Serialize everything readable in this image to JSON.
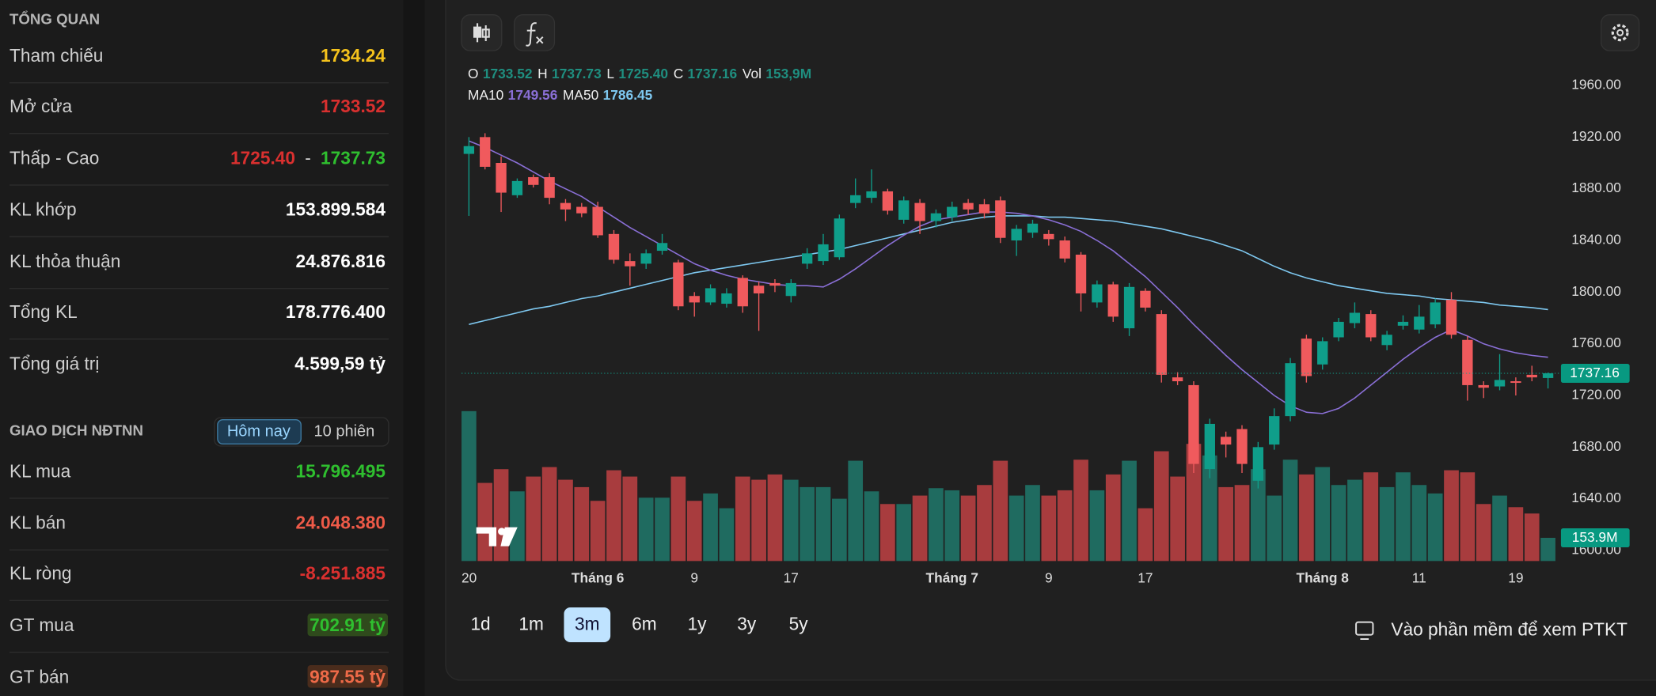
{
  "overview": {
    "title": "TỔNG QUAN",
    "rows": [
      {
        "label": "Tham chiếu",
        "value": "1734.24",
        "color": "#f4c21c"
      },
      {
        "label": "Mở cửa",
        "value": "1733.52",
        "color": "#d9302f"
      },
      {
        "label": "Thấp - Cao",
        "low": "1725.40",
        "separator": "-",
        "high": "1737.73",
        "low_color": "#d9302f",
        "high_color": "#2fbf2f"
      },
      {
        "label": "KL khớp",
        "value": "153.899.584",
        "color": "#ffffff"
      },
      {
        "label": "KL thỏa thuận",
        "value": "24.876.816",
        "color": "#ffffff"
      },
      {
        "label": "Tổng KL",
        "value": "178.776.400",
        "color": "#ffffff"
      },
      {
        "label": "Tổng giá trị",
        "value": "4.599,59 tỷ",
        "color": "#ffffff"
      }
    ]
  },
  "foreign": {
    "title": "GIAO DỊCH NĐTNN",
    "tabs": [
      "Hôm nay",
      "10 phiên"
    ],
    "active_tab": 0,
    "rows": [
      {
        "label": "KL mua",
        "value": "15.796.495",
        "color": "#2fbf2f"
      },
      {
        "label": "KL bán",
        "value": "24.048.380",
        "color": "#ee5a48"
      },
      {
        "label": "KL ròng",
        "value": "-8.251.885",
        "color": "#d9302f"
      },
      {
        "label": "GT mua",
        "value": "702.91 tỷ",
        "color": "#2fbf2f",
        "highlight": "#2f4a1c"
      },
      {
        "label": "GT bán",
        "value": "987.55 tỷ",
        "color": "#ee6a48",
        "highlight": "#4a2c1c"
      }
    ]
  },
  "chart": {
    "type": "candlestick",
    "up_color": "#0f9e8a",
    "down_color": "#f05a5d",
    "vol_up_color": "#1f6b60",
    "vol_down_color": "#a83c3e",
    "legend": [
      {
        "key": "O",
        "value": "1733.52"
      },
      {
        "key": "H",
        "value": "1737.73"
      },
      {
        "key": "L",
        "value": "1725.40"
      },
      {
        "key": "C",
        "value": "1737.16"
      },
      {
        "key": "Vol",
        "value": "153,9M"
      }
    ],
    "ma_legend": [
      {
        "key": "MA10",
        "value": "1749.56",
        "color": "#8a6fd6"
      },
      {
        "key": "MA50",
        "value": "1786.45",
        "color": "#7ec8f0"
      }
    ],
    "categories": [
      "20",
      null,
      null,
      null,
      null,
      null,
      null,
      null,
      "Tháng 6",
      null,
      null,
      null,
      null,
      null,
      "9",
      null,
      null,
      null,
      null,
      null,
      "17",
      null,
      null,
      null,
      null,
      null,
      null,
      null,
      null,
      null,
      "Tháng 7",
      null,
      null,
      null,
      null,
      null,
      "9",
      null,
      null,
      null,
      null,
      null,
      "17",
      null,
      null,
      null,
      null,
      null,
      null,
      null,
      null,
      null,
      null,
      "Tháng 8",
      null,
      null,
      null,
      null,
      null,
      "11",
      null,
      null,
      null,
      null,
      null,
      "19",
      null,
      null
    ],
    "open": [
      1907,
      1920,
      1900,
      1875,
      1889,
      1889,
      1869,
      1866,
      1866,
      1845,
      1824,
      1822,
      1832,
      1823,
      1797,
      1792,
      1791,
      1811,
      1805,
      1807,
      1797,
      1822,
      1824,
      1827,
      1869,
      1873,
      1878,
      1856,
      1869,
      1855,
      1858,
      1869,
      1868,
      1871,
      1840,
      1846,
      1845,
      1840,
      1829,
      1792,
      1806,
      1772,
      1801,
      1783,
      1734,
      1728,
      1663,
      1688,
      1694,
      1654,
      1682,
      1704,
      1764,
      1744,
      1765,
      1776,
      1783,
      1759,
      1774,
      1771,
      1775,
      1794,
      1763,
      1728,
      1727,
      1731,
      1736,
      1733.52
    ],
    "high": [
      1920,
      1923,
      1905,
      1888,
      1891,
      1892,
      1872,
      1869,
      1870,
      1848,
      1830,
      1833,
      1845,
      1825,
      1800,
      1806,
      1803,
      1813,
      1808,
      1810,
      1810,
      1834,
      1845,
      1860,
      1888,
      1895,
      1880,
      1874,
      1872,
      1864,
      1870,
      1872,
      1872,
      1874,
      1852,
      1856,
      1848,
      1843,
      1831,
      1809,
      1808,
      1807,
      1803,
      1786,
      1738,
      1731,
      1702,
      1692,
      1697,
      1684,
      1710,
      1749,
      1767,
      1765,
      1780,
      1792,
      1786,
      1770,
      1782,
      1790,
      1795,
      1800,
      1766,
      1731,
      1752,
      1734,
      1743,
      1737.73
    ],
    "low": [
      1859,
      1895,
      1862,
      1873,
      1881,
      1868,
      1855,
      1858,
      1842,
      1822,
      1805,
      1818,
      1829,
      1786,
      1781,
      1790,
      1788,
      1784,
      1770,
      1800,
      1792,
      1818,
      1821,
      1825,
      1865,
      1869,
      1860,
      1853,
      1845,
      1850,
      1855,
      1860,
      1857,
      1838,
      1828,
      1842,
      1836,
      1823,
      1785,
      1788,
      1777,
      1766,
      1785,
      1730,
      1728,
      1660,
      1656,
      1672,
      1660,
      1648,
      1678,
      1700,
      1730,
      1740,
      1762,
      1772,
      1762,
      1755,
      1771,
      1768,
      1772,
      1764,
      1716,
      1718,
      1724,
      1720,
      1731,
      1725.4
    ],
    "close": [
      1913,
      1897,
      1877,
      1886,
      1883,
      1873,
      1864,
      1861,
      1844,
      1825,
      1820,
      1830,
      1838,
      1789,
      1792,
      1803,
      1799,
      1789,
      1799,
      1805,
      1807,
      1830,
      1837,
      1857,
      1875,
      1878,
      1863,
      1871,
      1855,
      1861,
      1866,
      1864,
      1861,
      1842,
      1849,
      1853,
      1841,
      1826,
      1799,
      1806,
      1781,
      1804,
      1788,
      1736,
      1731,
      1667,
      1698,
      1682,
      1667,
      1680,
      1704,
      1745,
      1735,
      1762,
      1777,
      1784,
      1765,
      1767,
      1777,
      1781,
      1792,
      1767,
      1728,
      1726,
      1732,
      1730,
      1734,
      1737.16
    ],
    "volume": [
      994,
      518,
      609,
      462,
      560,
      623,
      539,
      490,
      399,
      602,
      560,
      420,
      420,
      560,
      399,
      448,
      350,
      560,
      539,
      574,
      539,
      490,
      490,
      413,
      665,
      462,
      378,
      378,
      434,
      483,
      469,
      434,
      504,
      665,
      434,
      504,
      434,
      469,
      672,
      469,
      574,
      665,
      350,
      728,
      560,
      777,
      700,
      490,
      504,
      609,
      434,
      672,
      574,
      623,
      504,
      539,
      588,
      490,
      588,
      504,
      448,
      602,
      588,
      378,
      434,
      357,
      315,
      153.9
    ],
    "ma10": [
      1917,
      1912,
      1906,
      1900,
      1893,
      1886,
      1880,
      1874,
      1866,
      1858,
      1850,
      1843,
      1836,
      1829,
      1822,
      1817,
      1813,
      1810,
      1808,
      1806,
      1805,
      1805,
      1804,
      1810,
      1818,
      1827,
      1836,
      1844,
      1851,
      1856,
      1858,
      1860,
      1862,
      1862,
      1861,
      1859,
      1856,
      1852,
      1847,
      1840,
      1832,
      1822,
      1812,
      1800,
      1788,
      1775,
      1763,
      1751,
      1740,
      1730,
      1720,
      1712,
      1707,
      1706,
      1710,
      1718,
      1728,
      1738,
      1748,
      1757,
      1765,
      1771,
      1766,
      1760,
      1756,
      1753,
      1751,
      1749.56
    ],
    "ma50": [
      1775,
      1778,
      1781,
      1784,
      1787,
      1789,
      1792,
      1795,
      1797,
      1800,
      1803,
      1806,
      1809,
      1812,
      1815,
      1817,
      1819,
      1821,
      1823,
      1825,
      1827,
      1829,
      1831,
      1833,
      1836,
      1839,
      1842,
      1845,
      1848,
      1851,
      1854,
      1856,
      1858,
      1859,
      1859,
      1859,
      1858,
      1858,
      1857,
      1856,
      1855,
      1853,
      1851,
      1849,
      1846,
      1843,
      1840,
      1836,
      1832,
      1826,
      1820,
      1815,
      1811,
      1808,
      1805,
      1803,
      1801,
      1799,
      1798,
      1797,
      1795,
      1794,
      1793,
      1792,
      1790,
      1789,
      1788,
      1786.45
    ],
    "ylim": [
      1600,
      1960
    ],
    "yticks": [
      {
        "value": 1600,
        "label": "1600.00"
      },
      {
        "value": 1640,
        "label": "1640.00"
      },
      {
        "value": 1680,
        "label": "1680.00"
      },
      {
        "value": 1720,
        "label": "1720.00"
      },
      {
        "value": 1760,
        "label": "1760.00"
      },
      {
        "value": 1800,
        "label": "1800.00"
      },
      {
        "value": 1840,
        "label": "1840.00"
      },
      {
        "value": 1880,
        "label": "1880.00"
      },
      {
        "value": 1920,
        "label": "1920.00"
      },
      {
        "value": 1960,
        "label": "1960.00"
      }
    ],
    "volume_lim": [
      0,
      1000
    ],
    "price_tag": {
      "value": 1737.16,
      "label": "1737.16"
    },
    "volume_tag": {
      "value": 153.9,
      "label": "153.9M"
    }
  },
  "ranges": [
    "1d",
    "1m",
    "3m",
    "6m",
    "1y",
    "3y",
    "5y"
  ],
  "active_range": 2,
  "open_software": "Vào phần mềm để xem PTKT"
}
